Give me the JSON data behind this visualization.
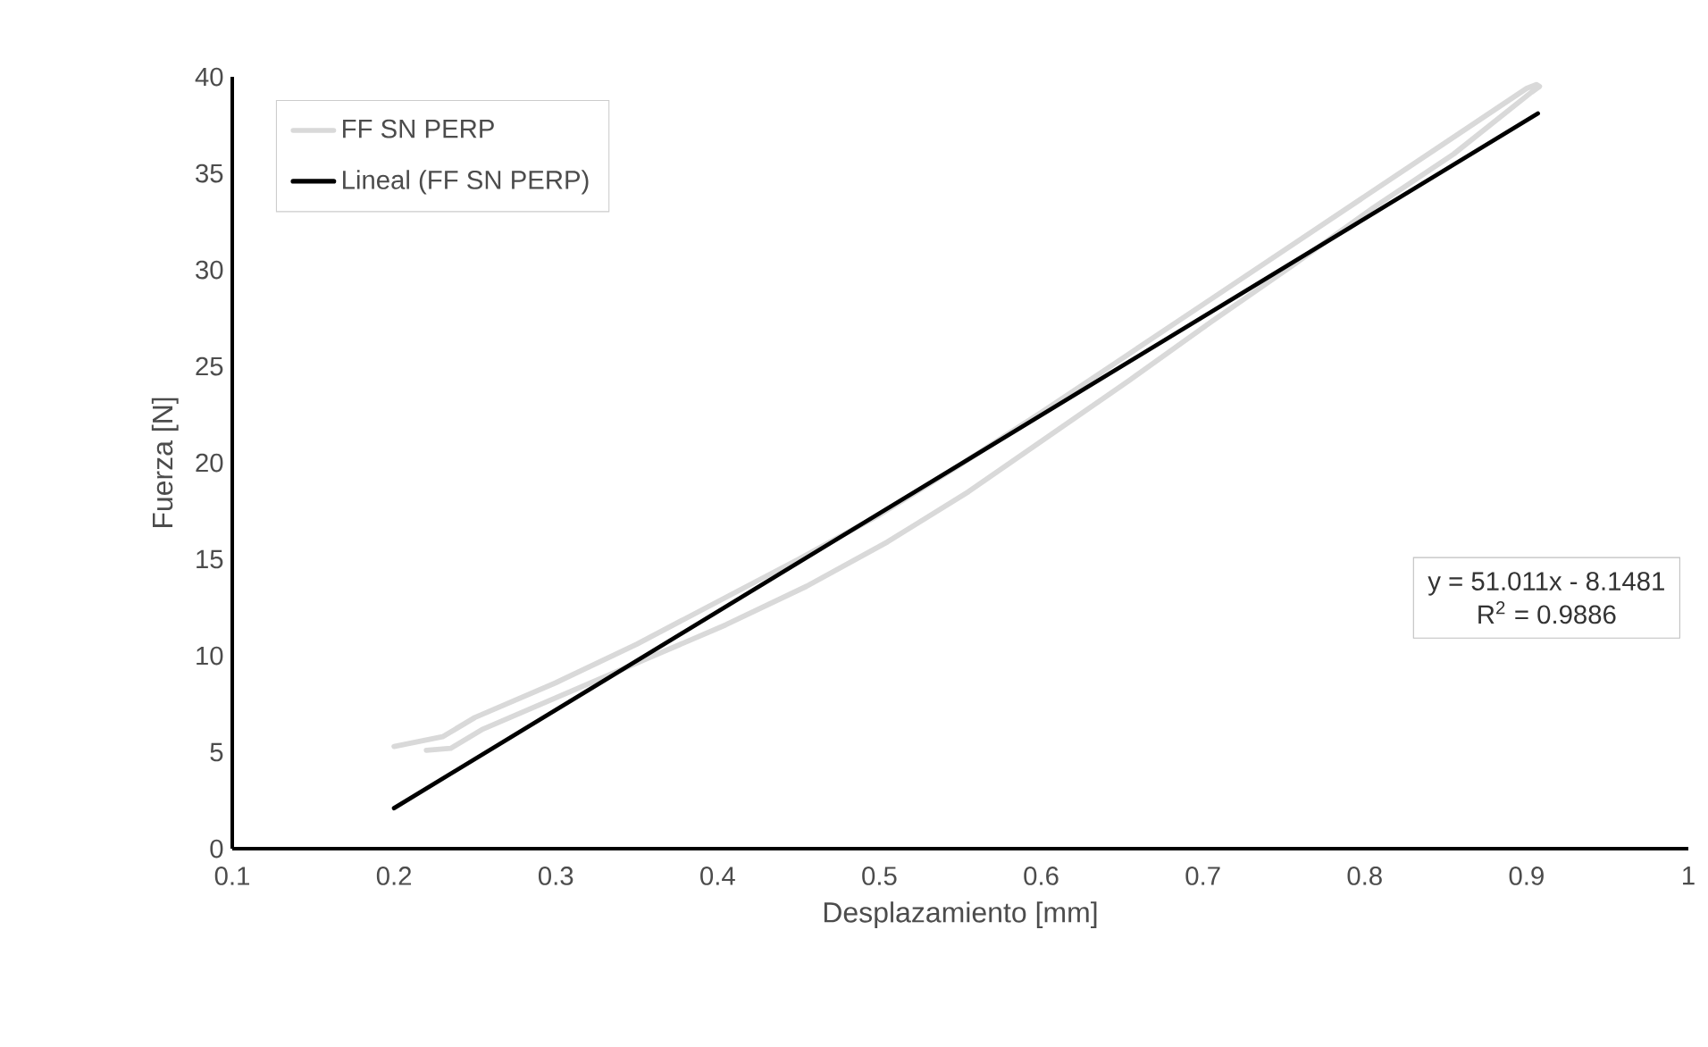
{
  "chart_data": {
    "type": "line",
    "xlabel": "Desplazamiento [mm]",
    "ylabel": "Fuerza [N]",
    "xlim": [
      0.1,
      1
    ],
    "xticks": [
      0.1,
      0.2,
      0.3,
      0.4,
      0.5,
      0.6,
      0.7,
      0.8,
      0.9,
      1
    ],
    "ylim": [
      0,
      40
    ],
    "yticks": [
      0,
      5,
      10,
      15,
      20,
      25,
      30,
      35,
      40
    ],
    "legend": "top left",
    "grid": false,
    "marker": "none",
    "series": [
      {
        "name": "FF SN PERP",
        "color": "#d9d9d9",
        "x": [
          0.2,
          0.23,
          0.25,
          0.3,
          0.35,
          0.4,
          0.45,
          0.5,
          0.55,
          0.6,
          0.65,
          0.7,
          0.75,
          0.8,
          0.85,
          0.9,
          0.906,
          0.908,
          0.903,
          0.855,
          0.805,
          0.755,
          0.705,
          0.655,
          0.605,
          0.555,
          0.505,
          0.455,
          0.405,
          0.355,
          0.305,
          0.255,
          0.235,
          0.22
        ],
        "values": [
          5.3,
          5.8,
          6.8,
          8.6,
          10.6,
          12.8,
          15.0,
          17.3,
          19.9,
          22.6,
          25.4,
          28.2,
          31.0,
          33.8,
          36.6,
          39.4,
          39.6,
          39.5,
          39.2,
          36.0,
          33.2,
          30.2,
          27.3,
          24.3,
          21.4,
          18.5,
          15.9,
          13.6,
          11.6,
          9.8,
          8.0,
          6.2,
          5.2,
          5.1
        ]
      },
      {
        "name": "Lineal (FF SN PERP)",
        "color": "#000000",
        "x": [
          0.2,
          0.907
        ],
        "values": [
          2.1,
          38.1
        ]
      }
    ],
    "annotations": [
      "y = 51.011x - 8.1481",
      "R$^{2}$ = 0.9886"
    ]
  }
}
